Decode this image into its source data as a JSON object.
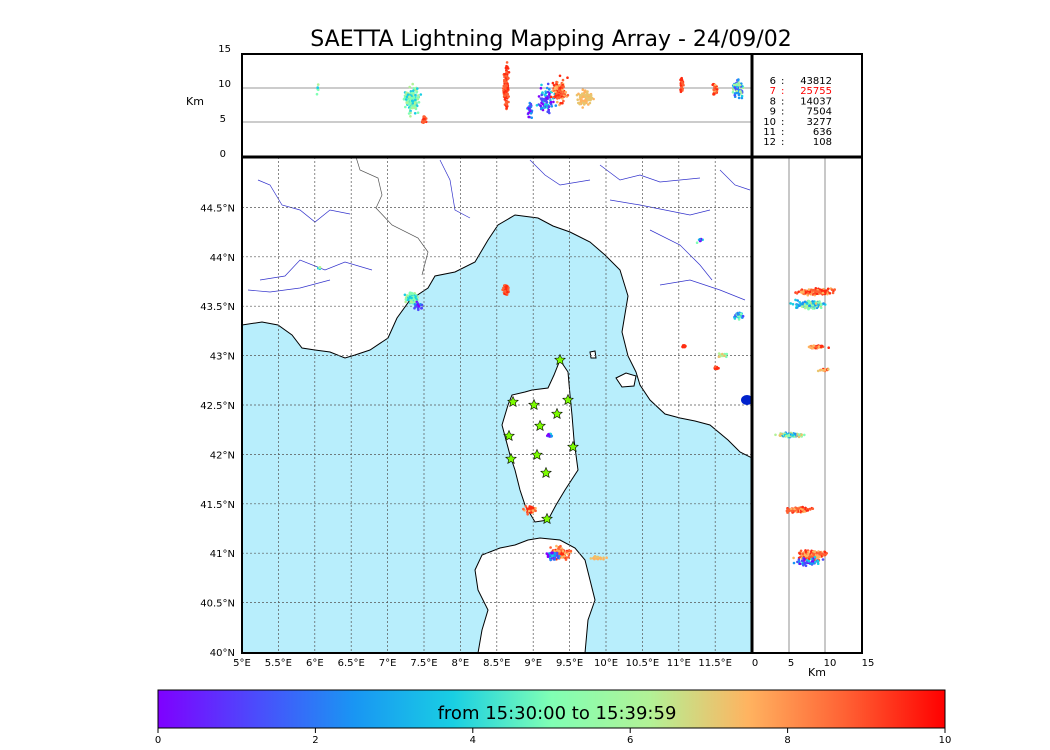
{
  "title": "SAETTA Lightning Mapping Array - 24/09/02",
  "colorbar": {
    "label": "from 15:30:00 to 15:39:59",
    "ticks": [
      "0",
      "2",
      "4",
      "6",
      "8",
      "10"
    ]
  },
  "map": {
    "lon_ticks": [
      "5°E",
      "5.5°E",
      "6°E",
      "6.5°E",
      "7°E",
      "7.5°E",
      "8°E",
      "8.5°E",
      "9°E",
      "9.5°E",
      "10°E",
      "10.5°E",
      "11°E",
      "11.5°E"
    ],
    "lat_ticks": [
      "40°N",
      "40.5°N",
      "41°N",
      "41.5°N",
      "42°N",
      "42.5°N",
      "43°N",
      "43.5°N",
      "44°N",
      "44.5°N"
    ],
    "sea_color": "#b8eefc",
    "land_color": "#ffffff"
  },
  "altitude_panel": {
    "unit": "Km",
    "ticks": [
      "0",
      "5",
      "10",
      "15"
    ]
  },
  "side_panel": {
    "unit": "Km",
    "ticks": [
      "0",
      "5",
      "10",
      "15"
    ]
  },
  "station_counts": [
    {
      "stations": "6",
      "count": "43812",
      "highlight": false
    },
    {
      "stations": "7",
      "count": "25755",
      "highlight": true
    },
    {
      "stations": "8",
      "count": "14037",
      "highlight": false
    },
    {
      "stations": "9",
      "count": "7504",
      "highlight": false
    },
    {
      "stations": "10",
      "count": "3277",
      "highlight": false
    },
    {
      "stations": "11",
      "count": "636",
      "highlight": false
    },
    {
      "stations": "12",
      "count": "108",
      "highlight": false
    }
  ],
  "colors": {
    "highlight": "#ff0000",
    "station_marker": "#7cfc00",
    "river": "#3333cc",
    "border": "#555555"
  }
}
